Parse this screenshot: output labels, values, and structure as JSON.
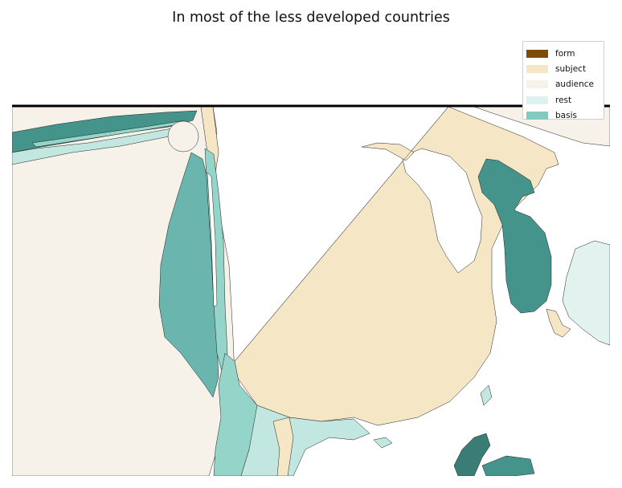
{
  "title": "In most of the less developed countries",
  "legend": [
    {
      "label": "form",
      "color": "#7f4b0a"
    },
    {
      "label": "subject",
      "color": "#f5e6c6"
    },
    {
      "label": "audience",
      "color": "#f6f1e9"
    },
    {
      "label": "rest",
      "color": "#def1ee"
    },
    {
      "label": "basis",
      "color": "#82c9be"
    }
  ],
  "colors": {
    "audience": "#f6f1e9",
    "subject": "#f5e6c6",
    "rest": "#c2e6e0",
    "rest_light": "#e1f2ef",
    "basis": "#94d4c9",
    "basis_mid": "#6ab5ad",
    "basis_dark": "#44948c",
    "basis_darkest": "#3a7d75"
  }
}
